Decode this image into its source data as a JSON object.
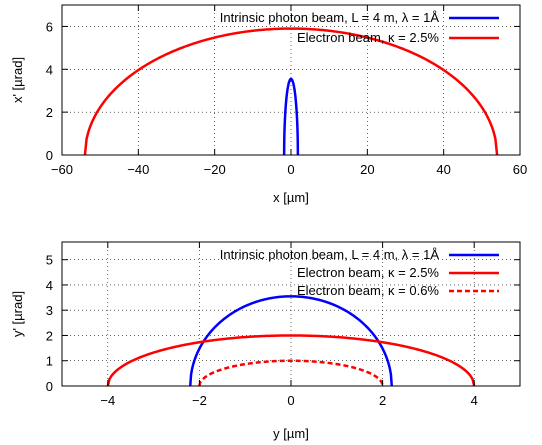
{
  "chart_data": [
    {
      "type": "line",
      "xlabel": "x [µm]",
      "ylabel": "x' [µrad]",
      "xlim": [
        -60,
        60
      ],
      "ylim": [
        0,
        7
      ],
      "xticks": [
        -60,
        -40,
        -20,
        0,
        20,
        40,
        60
      ],
      "yticks": [
        0,
        2,
        4,
        6
      ],
      "xtick_labels": [
        "−60",
        "−40",
        "−20",
        "0",
        "20",
        "40",
        "60"
      ],
      "ytick_labels": [
        "0",
        "2",
        "4",
        "6"
      ],
      "grid": true,
      "legend_position": "top-right",
      "series": [
        {
          "name": "Intrinsic photon beam, L = 4 m, λ = 1Å",
          "color": "#0000ff",
          "dash": "solid",
          "shape": "ellipse-arc",
          "center": 0,
          "half_width": 1.8,
          "peak": 3.55
        },
        {
          "name": "Electron beam, κ = 2.5%",
          "color": "#ff0000",
          "dash": "solid",
          "shape": "ellipse-arc",
          "center": 0,
          "half_width": 54,
          "peak": 5.9
        }
      ]
    },
    {
      "type": "line",
      "xlabel": "y [µm]",
      "ylabel": "y' [µrad]",
      "xlim": [
        -5,
        5
      ],
      "ylim": [
        0,
        5.7
      ],
      "xticks": [
        -4,
        -2,
        0,
        2,
        4
      ],
      "yticks": [
        0,
        1,
        2,
        3,
        4,
        5
      ],
      "xtick_labels": [
        "−4",
        "−2",
        "0",
        "2",
        "4"
      ],
      "ytick_labels": [
        "0",
        "1",
        "2",
        "3",
        "4",
        "5"
      ],
      "grid": true,
      "legend_position": "top-right",
      "series": [
        {
          "name": "Intrinsic photon beam, L = 4 m, λ = 1Å",
          "color": "#0000ff",
          "dash": "solid",
          "shape": "ellipse-arc",
          "center": 0,
          "half_width": 2.2,
          "peak": 3.55
        },
        {
          "name": "Electron beam, κ = 2.5%",
          "color": "#ff0000",
          "dash": "solid",
          "shape": "ellipse-arc",
          "center": 0,
          "half_width": 4.0,
          "peak": 2.0
        },
        {
          "name": "Electron beam, κ = 0.6%",
          "color": "#ff0000",
          "dash": "dashed",
          "shape": "ellipse-arc",
          "center": 0,
          "half_width": 2.0,
          "peak": 1.0
        }
      ]
    }
  ]
}
